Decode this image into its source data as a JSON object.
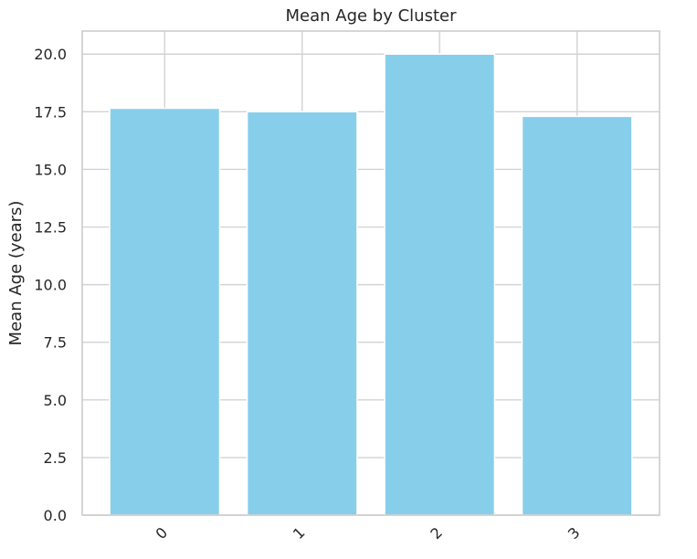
{
  "chart_data": {
    "type": "bar",
    "title": "Mean Age by Cluster",
    "xlabel": "",
    "ylabel": "Mean Age (years)",
    "categories": [
      "0",
      "1",
      "2",
      "3"
    ],
    "values": [
      17.65,
      17.5,
      20.0,
      17.3
    ],
    "ylim": [
      0,
      21
    ],
    "yticks": [
      0.0,
      2.5,
      5.0,
      7.5,
      10.0,
      12.5,
      15.0,
      17.5,
      20.0
    ],
    "ytick_labels": [
      "0.0",
      "2.5",
      "5.0",
      "7.5",
      "10.0",
      "12.5",
      "15.0",
      "17.5",
      "20.0"
    ],
    "grid": true,
    "xtick_rotation": 45,
    "colors": {
      "bar": "#87ceeb",
      "grid": "#d3d3d3",
      "spine": "#cccccc",
      "text": "#262626"
    }
  }
}
